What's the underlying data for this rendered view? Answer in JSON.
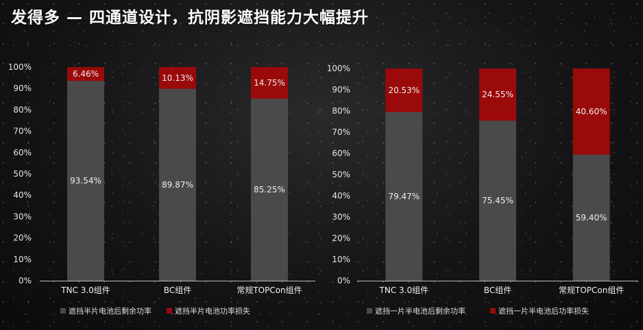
{
  "page": {
    "title": "发得多 — 四通道设计，抗阴影遮挡能力大幅提升"
  },
  "colors": {
    "remaining": "#4a4a4a",
    "loss": "#9a0a0a",
    "text": "#e6e6e6"
  },
  "chart_data": [
    {
      "type": "bar",
      "stacked": true,
      "categories": [
        "TNC 3.0组件",
        "BC组件",
        "常规TOPCon组件"
      ],
      "series": [
        {
          "name": "遮挡半片电池后剩余功率",
          "values": [
            93.54,
            89.87,
            85.25
          ],
          "labels": [
            "93.54%",
            "89.87%",
            "85.25%"
          ],
          "color": "#4a4a4a"
        },
        {
          "name": "遮挡半片电池功率损失",
          "values": [
            6.46,
            10.13,
            14.75
          ],
          "labels": [
            "6.46%",
            "10.13%",
            "14.75%"
          ],
          "color": "#9a0a0a"
        }
      ],
      "ylim": [
        0,
        100
      ],
      "yticks": [
        "0%",
        "10%",
        "20%",
        "30%",
        "40%",
        "50%",
        "60%",
        "70%",
        "80%",
        "90%",
        "100%"
      ],
      "grid": false,
      "legend": "bottom"
    },
    {
      "type": "bar",
      "stacked": true,
      "categories": [
        "TNC 3.0组件",
        "BC组件",
        "常规TOPCon组件"
      ],
      "series": [
        {
          "name": "遮挡一片半电池后剩余功率",
          "values": [
            79.47,
            75.45,
            59.4
          ],
          "labels": [
            "79.47%",
            "75.45%",
            "59.40%"
          ],
          "color": "#4a4a4a"
        },
        {
          "name": "遮挡一片半电池后功率损失",
          "values": [
            20.53,
            24.55,
            40.6
          ],
          "labels": [
            "20.53%",
            "24.55%",
            "40.60%"
          ],
          "color": "#9a0a0a"
        }
      ],
      "ylim": [
        0,
        100
      ],
      "yticks": [
        "0%",
        "10%",
        "20%",
        "30%",
        "40%",
        "50%",
        "60%",
        "70%",
        "80%",
        "90%",
        "100%"
      ],
      "grid": false,
      "legend": "bottom"
    }
  ]
}
